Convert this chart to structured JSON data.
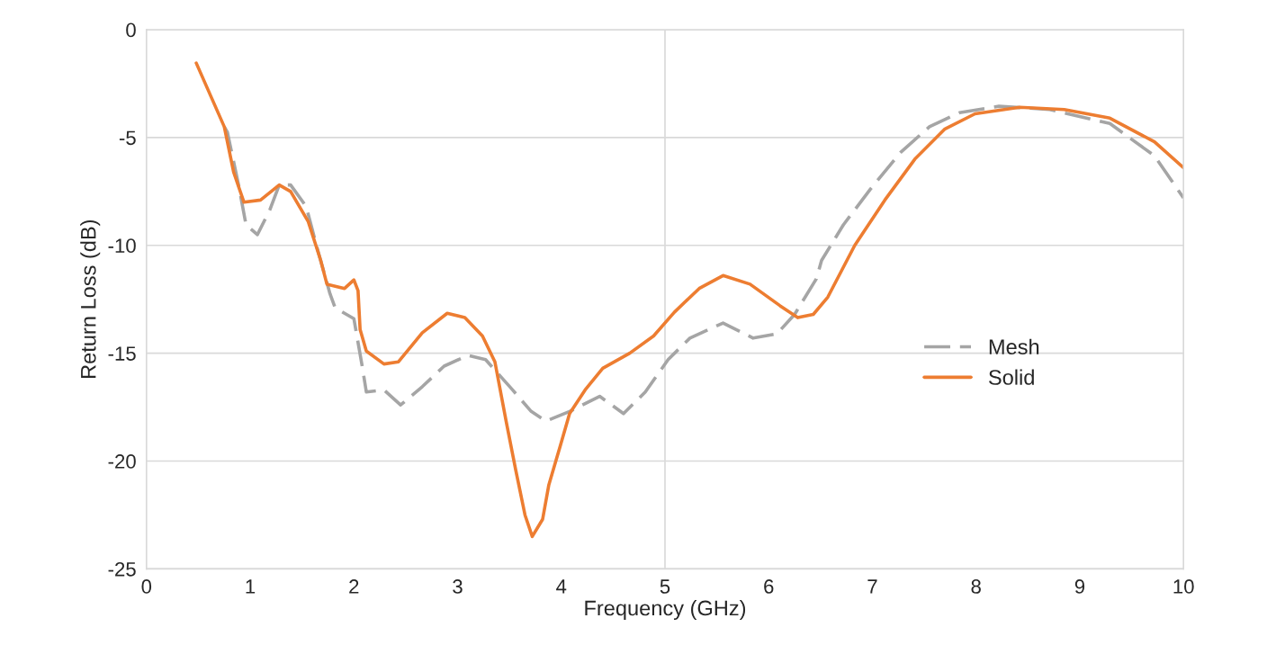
{
  "chart_data": {
    "type": "line",
    "xlabel": "Frequency (GHz)",
    "ylabel": "Return Loss (dB)",
    "xlim": [
      0,
      10
    ],
    "ylim": [
      -25,
      0
    ],
    "xticks": [
      0,
      1,
      2,
      3,
      4,
      5,
      6,
      7,
      8,
      9,
      10
    ],
    "yticks": [
      0,
      -5,
      -10,
      -15,
      -20,
      -25
    ],
    "grid": "y",
    "legend": "right",
    "marker": "none",
    "ref_lines": [
      {
        "axis": "x",
        "value": 5,
        "label": null,
        "color": "#d9d9d9"
      }
    ],
    "series": [
      {
        "name": "Mesh",
        "color": "#a5a5a5",
        "line_style": "dashed",
        "x": [
          0.75,
          0.78,
          0.89,
          0.96,
          1.07,
          1.19,
          1.28,
          1.39,
          1.54,
          1.65,
          1.77,
          1.82,
          2.0,
          2.08,
          2.12,
          2.29,
          2.45,
          2.66,
          2.87,
          3.1,
          3.27,
          3.53,
          3.71,
          3.85,
          4.08,
          4.37,
          4.6,
          4.81,
          5.03,
          5.24,
          5.56,
          5.85,
          6.08,
          6.25,
          6.46,
          6.51,
          6.72,
          6.98,
          7.27,
          7.55,
          7.84,
          8.22,
          8.71,
          9.29,
          9.72,
          10.0
        ],
        "values": [
          -4.5,
          -4.75,
          -7.25,
          -9.05,
          -9.5,
          -8.35,
          -7.2,
          -7.2,
          -8.2,
          -10.2,
          -12.25,
          -12.9,
          -13.4,
          -15.6,
          -16.8,
          -16.7,
          -17.4,
          -16.55,
          -15.6,
          -15.1,
          -15.3,
          -16.7,
          -17.7,
          -18.15,
          -17.7,
          -17.0,
          -17.8,
          -16.8,
          -15.3,
          -14.3,
          -13.6,
          -14.3,
          -14.1,
          -13.2,
          -11.55,
          -10.7,
          -9.05,
          -7.4,
          -5.7,
          -4.5,
          -3.85,
          -3.55,
          -3.7,
          -4.35,
          -5.85,
          -7.8
        ]
      },
      {
        "name": "Solid",
        "color": "#ed7d31",
        "line_style": "solid",
        "x": [
          0.48,
          0.75,
          0.84,
          0.94,
          1.1,
          1.28,
          1.39,
          1.56,
          1.68,
          1.74,
          1.91,
          2.0,
          2.04,
          2.06,
          2.12,
          2.29,
          2.43,
          2.66,
          2.9,
          3.07,
          3.24,
          3.36,
          3.47,
          3.56,
          3.65,
          3.72,
          3.82,
          3.88,
          3.99,
          4.08,
          4.23,
          4.4,
          4.66,
          4.89,
          5.09,
          5.33,
          5.56,
          5.82,
          6.11,
          6.28,
          6.43,
          6.57,
          6.83,
          7.12,
          7.41,
          7.7,
          7.99,
          8.42,
          8.85,
          9.29,
          9.72,
          10.0
        ],
        "values": [
          -1.55,
          -4.5,
          -6.6,
          -8.0,
          -7.9,
          -7.2,
          -7.5,
          -8.9,
          -10.7,
          -11.8,
          -12.0,
          -11.6,
          -12.1,
          -13.9,
          -14.9,
          -15.5,
          -15.4,
          -14.05,
          -13.15,
          -13.35,
          -14.2,
          -15.4,
          -18.2,
          -20.4,
          -22.5,
          -23.5,
          -22.7,
          -21.1,
          -19.3,
          -17.8,
          -16.7,
          -15.7,
          -15.0,
          -14.2,
          -13.1,
          -12.0,
          -11.4,
          -11.8,
          -12.8,
          -13.35,
          -13.2,
          -12.4,
          -10.0,
          -7.9,
          -6.0,
          -4.6,
          -3.9,
          -3.6,
          -3.7,
          -4.1,
          -5.2,
          -6.4
        ]
      }
    ]
  }
}
